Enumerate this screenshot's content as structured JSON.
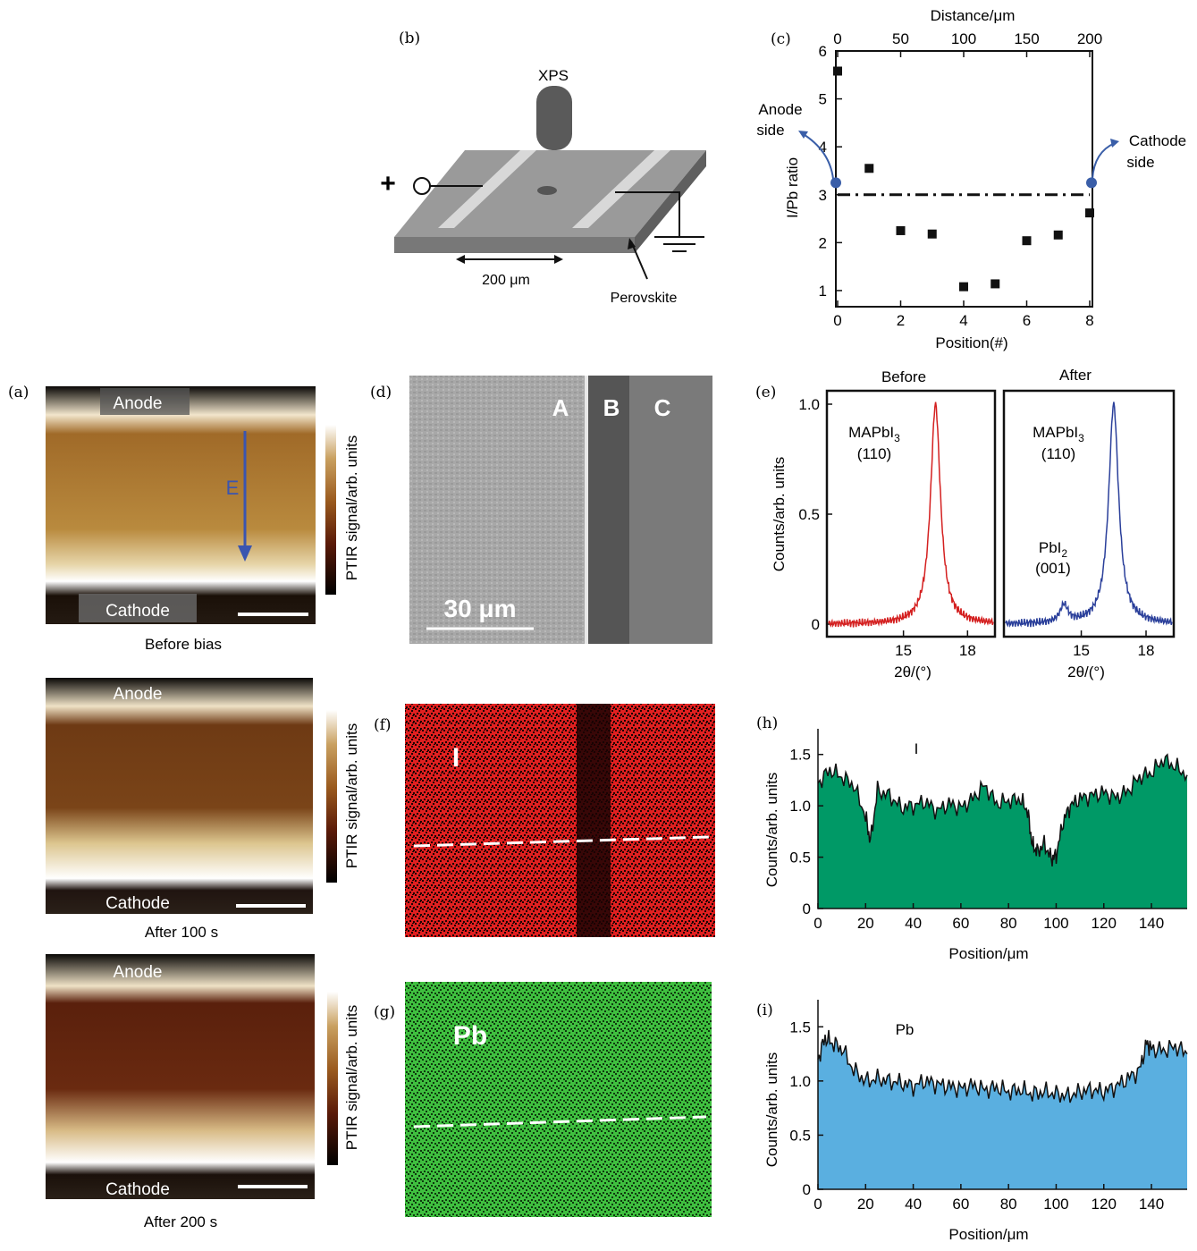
{
  "colors": {
    "anode_marker": "#3a5ea8",
    "xrd_before": "#d42020",
    "xrd_after": "#2a3f9a",
    "iodine_fill": "#009966",
    "lead_fill": "#5aafe0",
    "eds_iodine": "#e02020",
    "eds_lead": "#3fbf3f",
    "field_arrow": "#3a55b0"
  },
  "panel_labels": {
    "a": "(a)",
    "b": "(b)",
    "c": "(c)",
    "d": "(d)",
    "e": "(e)",
    "f": "(f)",
    "g": "(g)",
    "h": "(h)",
    "i": "(i)"
  },
  "ptir": {
    "colorbar_label": "PTIR signal/arb. units",
    "anode": "Anode",
    "cathode": "Cathode",
    "field": "E",
    "captions": [
      "Before bias",
      "After 100 s",
      "After 200 s"
    ]
  },
  "schematic": {
    "xps": "XPS",
    "plus": "+",
    "width": "200 μm",
    "material": "Perovskite"
  },
  "sem": {
    "regions": [
      "A",
      "B",
      "C"
    ],
    "scale": "30 μm"
  },
  "eds": {
    "iodine_label": "I",
    "lead_label": "Pb"
  },
  "chart_data": [
    {
      "id": "c",
      "type": "scatter",
      "x": [
        0,
        1,
        2,
        3,
        4,
        5,
        6,
        7,
        8
      ],
      "y": [
        5.58,
        3.55,
        2.25,
        2.18,
        1.08,
        1.14,
        2.04,
        2.16,
        2.62
      ],
      "xlabel": "Position(#)",
      "ylabel": "I/Pb ratio",
      "top_xlabel": "Distance/μm",
      "xlim": [
        0,
        8
      ],
      "ylim": [
        0.7,
        6
      ],
      "xticks": [
        "0",
        "2",
        "4",
        "6",
        "8"
      ],
      "yticks": [
        "1",
        "2",
        "3",
        "4",
        "5",
        "6"
      ],
      "top_xticks": [
        "0",
        "50",
        "100",
        "150",
        "200"
      ],
      "reference_line_y": 3,
      "annotations": {
        "left_line1": "Anode",
        "left_line2": "side",
        "right_line1": "Cathode",
        "right_line2": "side"
      }
    },
    {
      "id": "e",
      "type": "line",
      "ylabel": "Counts/arb. units",
      "xlabel": "2θ/(°)",
      "ylim": [
        -0.05,
        1.05
      ],
      "yticks": [
        "0",
        "0.5",
        "1.0"
      ],
      "panels": [
        {
          "title": "Before",
          "xlim": [
            11.5,
            19.2
          ],
          "xticks": [
            "15",
            "18"
          ],
          "peak_x": 16.5,
          "peaks": [
            {
              "x": 16.5,
              "y": 1.0,
              "label1": "MAPbI",
              "label_sub": "3",
              "label2": "(110)"
            }
          ]
        },
        {
          "title": "After",
          "xlim": [
            11.5,
            19.2
          ],
          "xticks": [
            "15",
            "18"
          ],
          "peaks": [
            {
              "x": 16.5,
              "y": 1.0,
              "label1": "MAPbI",
              "label_sub": "3",
              "label2": "(110)"
            },
            {
              "x": 14.2,
              "y": 0.08,
              "label1": "PbI",
              "label_sub": "2",
              "label2": "(001)"
            }
          ]
        }
      ]
    },
    {
      "id": "h",
      "type": "area",
      "series_label": "I",
      "xlabel": "Position/μm",
      "ylabel": "Counts/arb. units",
      "xlim": [
        0,
        155
      ],
      "ylim": [
        0,
        1.75
      ],
      "xticks": [
        "0",
        "20",
        "40",
        "60",
        "80",
        "100",
        "120",
        "140"
      ],
      "yticks": [
        "0",
        "0.5",
        "1.0",
        "1.5"
      ],
      "x": [
        0,
        5,
        10,
        15,
        20,
        22,
        25,
        30,
        35,
        40,
        45,
        50,
        55,
        60,
        65,
        70,
        75,
        80,
        85,
        88,
        90,
        92,
        95,
        98,
        100,
        103,
        106,
        110,
        115,
        120,
        125,
        130,
        135,
        140,
        145,
        150,
        155
      ],
      "y": [
        1.22,
        1.35,
        1.28,
        1.2,
        0.9,
        0.65,
        1.15,
        1.1,
        0.98,
        1.0,
        1.04,
        0.95,
        1.02,
        0.98,
        1.07,
        1.2,
        1.02,
        1.05,
        1.06,
        0.95,
        0.62,
        0.55,
        0.63,
        0.48,
        0.52,
        0.85,
        1.0,
        1.07,
        1.1,
        1.13,
        1.08,
        1.14,
        1.28,
        1.32,
        1.45,
        1.38,
        1.3
      ]
    },
    {
      "id": "i",
      "type": "area",
      "series_label": "Pb",
      "xlabel": "Position/μm",
      "ylabel": "Counts/arb. units",
      "xlim": [
        0,
        155
      ],
      "ylim": [
        0,
        1.75
      ],
      "xticks": [
        "0",
        "20",
        "40",
        "60",
        "80",
        "100",
        "120",
        "140"
      ],
      "yticks": [
        "0",
        "0.5",
        "1.0",
        "1.5"
      ],
      "x": [
        0,
        3,
        6,
        10,
        15,
        20,
        25,
        30,
        35,
        40,
        45,
        50,
        55,
        60,
        65,
        70,
        75,
        80,
        85,
        90,
        95,
        100,
        105,
        110,
        115,
        120,
        125,
        130,
        135,
        138,
        140,
        145,
        150,
        155
      ],
      "y": [
        1.2,
        1.4,
        1.35,
        1.3,
        1.1,
        1.0,
        1.02,
        1.0,
        0.98,
        0.95,
        1.0,
        0.97,
        0.95,
        0.93,
        0.96,
        0.92,
        0.94,
        0.9,
        0.92,
        0.88,
        0.9,
        0.88,
        0.86,
        0.9,
        0.92,
        0.9,
        0.95,
        1.02,
        1.1,
        1.35,
        1.3,
        1.28,
        1.32,
        1.25
      ]
    }
  ]
}
